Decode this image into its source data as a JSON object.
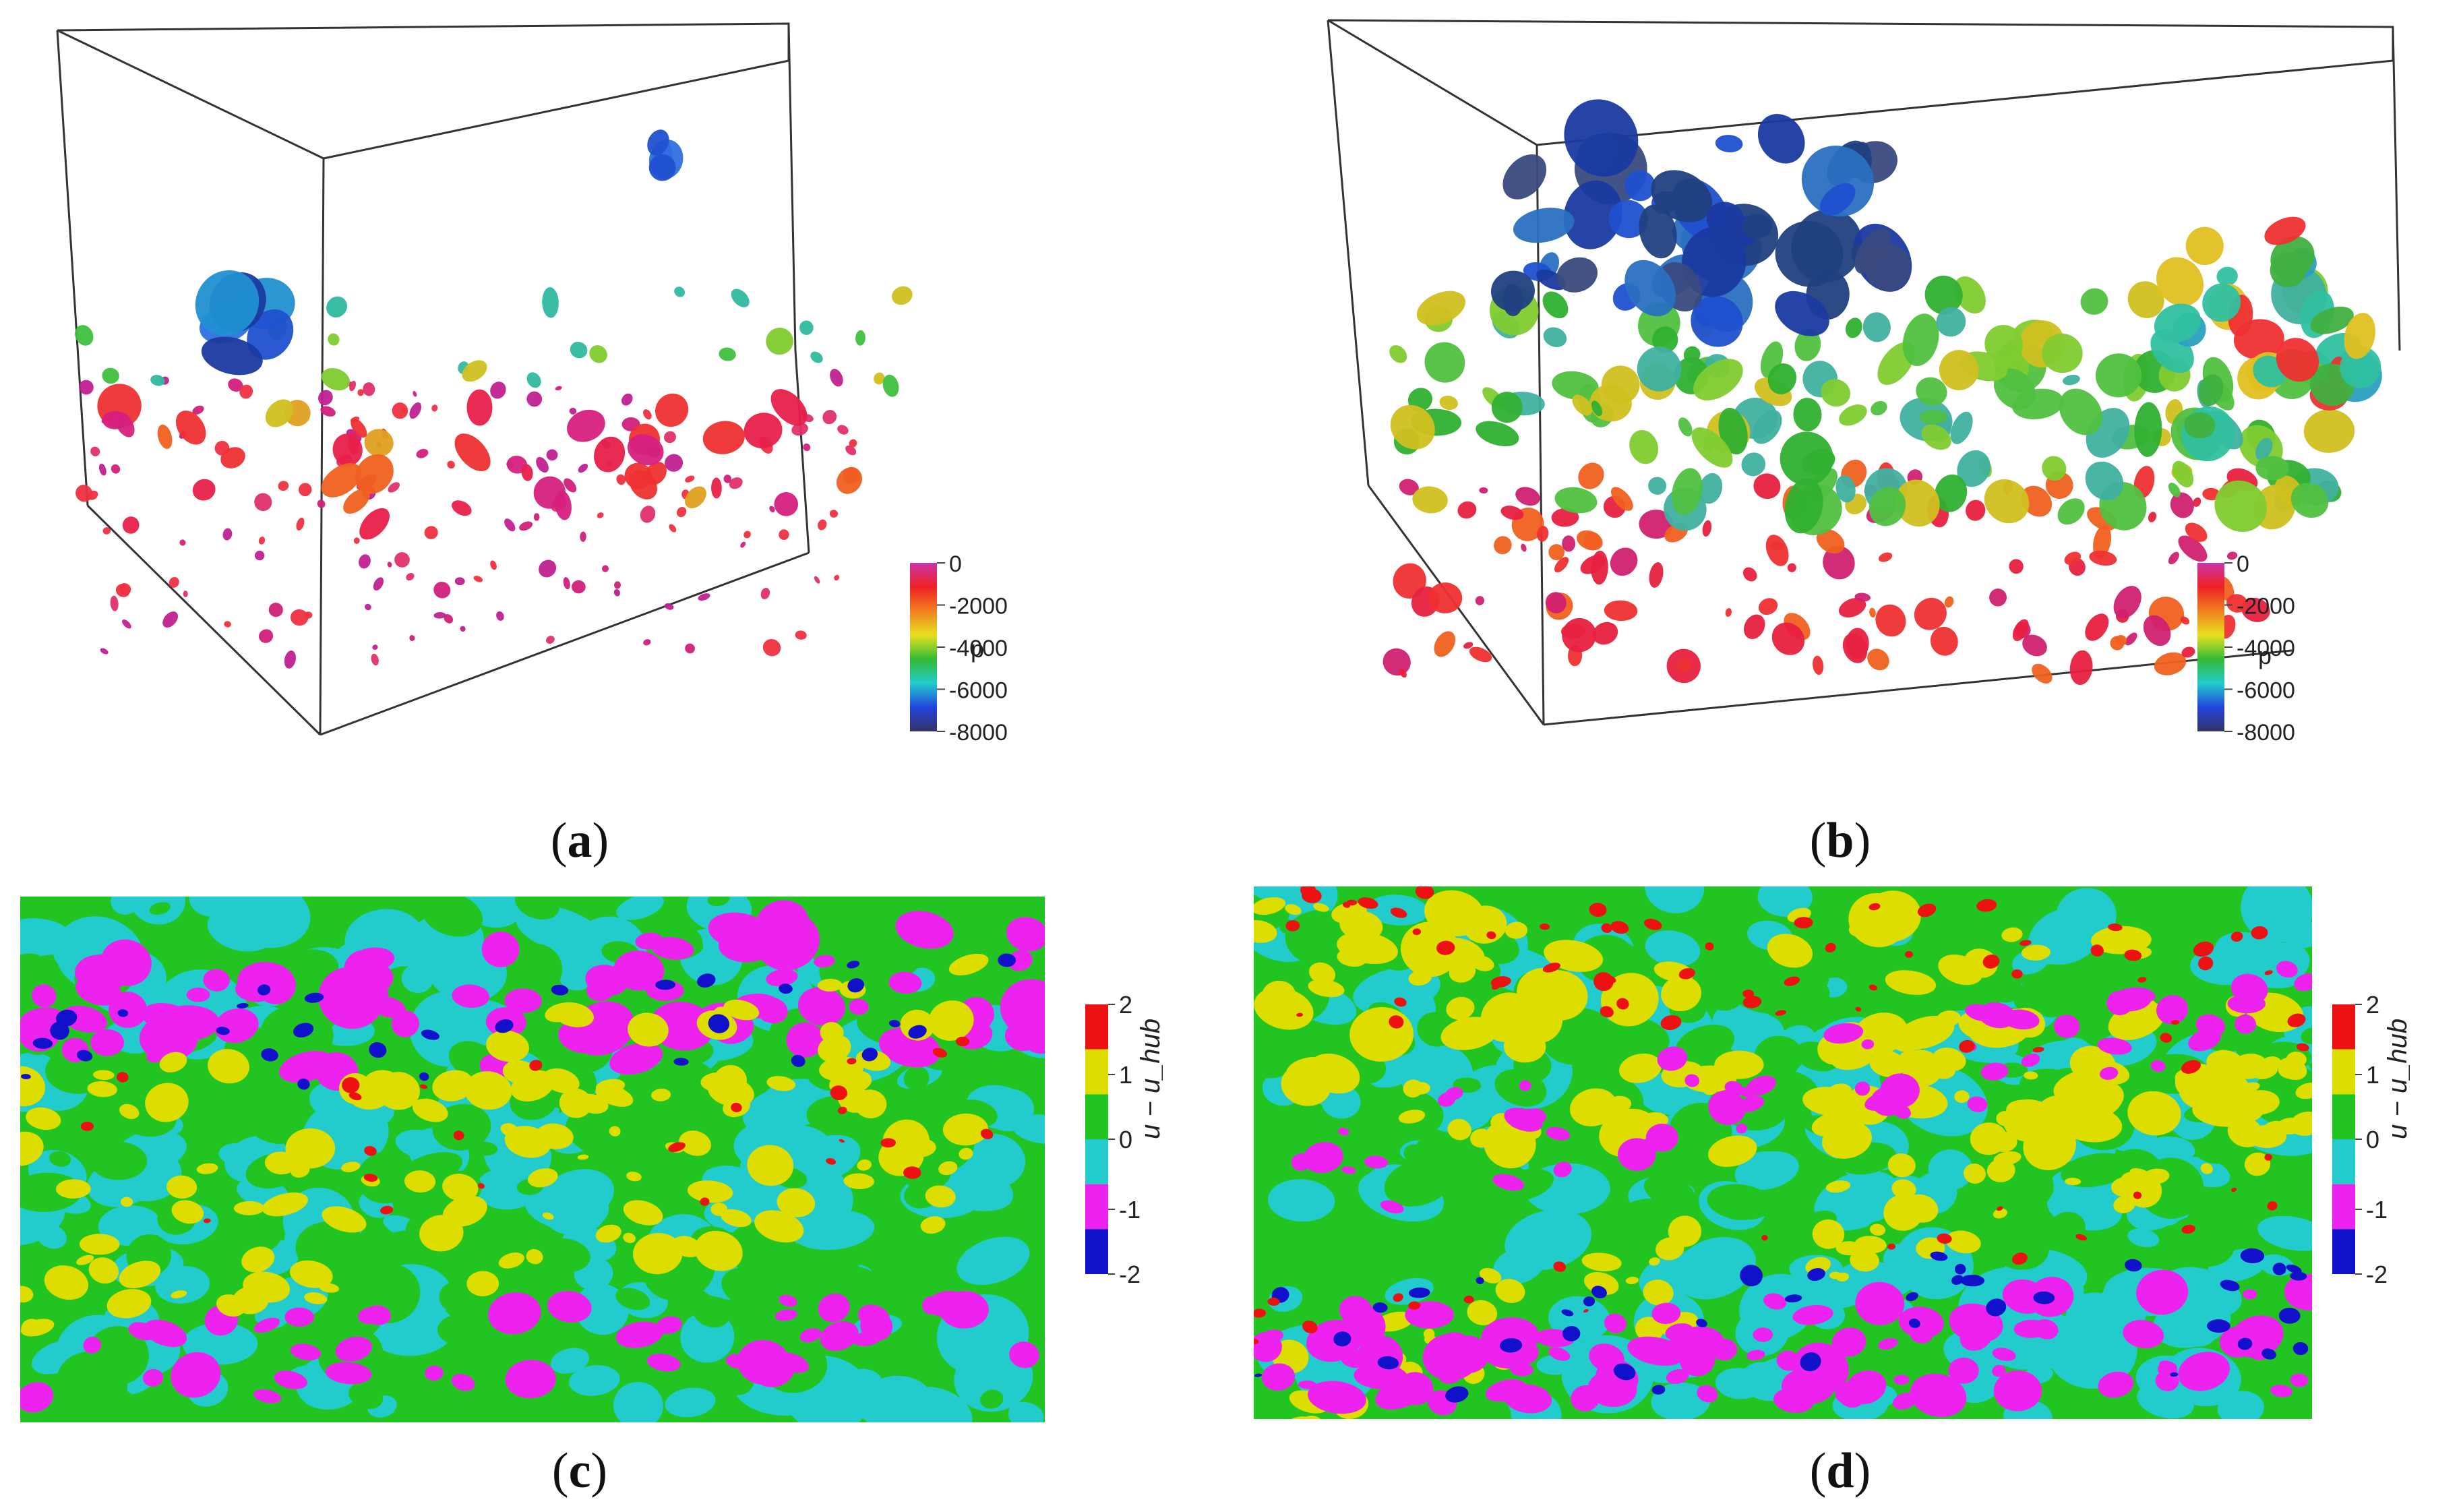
{
  "panels": [
    {
      "id": "a",
      "caption": "a",
      "kind": "isosurface-3d",
      "colorbar": {
        "label": "p",
        "ticks": [
          "0",
          "-2000",
          "-4000",
          "-6000",
          "-8000"
        ],
        "colors": [
          "#cc33aa",
          "#ee2222",
          "#f08020",
          "#e8e020",
          "#33bb33",
          "#22cccc",
          "#2244dd",
          "#333366"
        ]
      }
    },
    {
      "id": "b",
      "caption": "b",
      "kind": "isosurface-3d",
      "colorbar": {
        "label": "p",
        "ticks": [
          "0",
          "-2000",
          "-4000",
          "-6000",
          "-8000"
        ],
        "colors": [
          "#cc33aa",
          "#ee2222",
          "#f08020",
          "#e8e020",
          "#33bb33",
          "#22cccc",
          "#2244dd",
          "#333366"
        ]
      }
    },
    {
      "id": "c",
      "caption": "c",
      "kind": "contour-2d",
      "colorbar": {
        "label": "u − u_hub",
        "ticks": [
          "2",
          "1",
          "0",
          "-1",
          "-2"
        ],
        "colors": [
          "#ee1111",
          "#dddd00",
          "#22c422",
          "#22cccc",
          "#ee22ee",
          "#1111cc"
        ]
      }
    },
    {
      "id": "d",
      "caption": "d",
      "kind": "contour-2d",
      "colorbar": {
        "label": "u − u_hub",
        "ticks": [
          "2",
          "1",
          "0",
          "-1",
          "-2"
        ],
        "colors": [
          "#ee1111",
          "#dddd00",
          "#22c422",
          "#22cccc",
          "#ee22ee",
          "#1111cc"
        ]
      }
    }
  ]
}
